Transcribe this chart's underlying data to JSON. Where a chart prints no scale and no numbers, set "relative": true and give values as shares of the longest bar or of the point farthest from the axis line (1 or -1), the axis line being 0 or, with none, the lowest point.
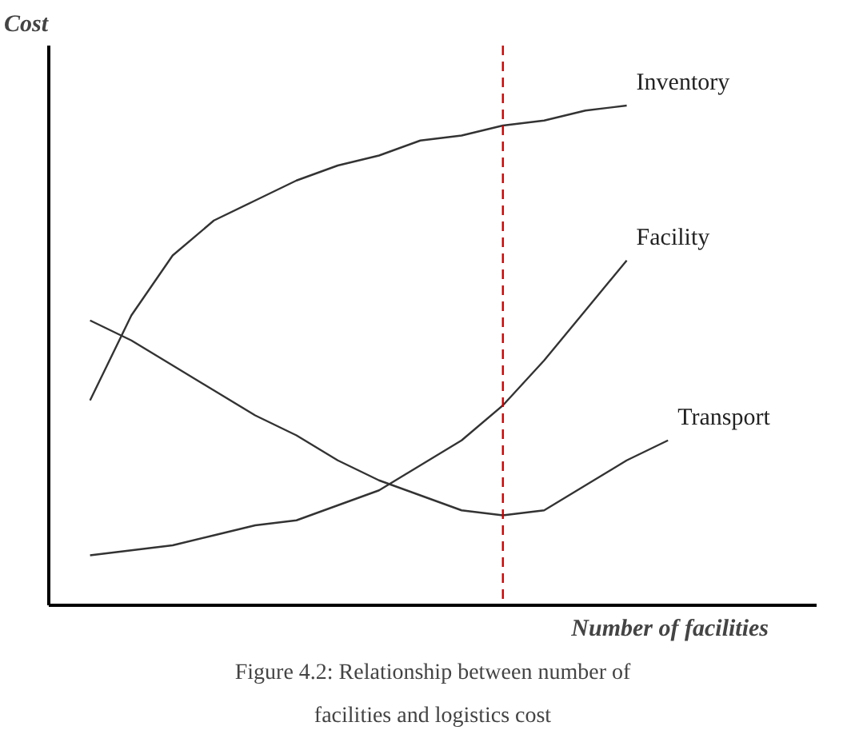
{
  "chart_data": {
    "type": "line",
    "relative": true,
    "xlabel": "Number of facilities",
    "ylabel": "Cost",
    "categories": [
      null,
      null,
      null,
      null,
      null,
      null,
      null,
      null,
      null,
      null,
      null,
      null,
      null,
      null,
      null
    ],
    "series": [
      {
        "name": "Inventory",
        "color": "#333333",
        "values": [
          0.41,
          0.58,
          0.7,
          0.77,
          0.81,
          0.85,
          0.88,
          0.9,
          0.93,
          0.94,
          0.96,
          0.97,
          0.99,
          1.0,
          null
        ]
      },
      {
        "name": "Facility",
        "color": "#333333",
        "values": [
          0.1,
          0.11,
          0.12,
          0.14,
          0.16,
          0.17,
          0.2,
          0.23,
          0.28,
          0.33,
          0.4,
          0.49,
          0.59,
          0.69,
          null
        ]
      },
      {
        "name": "Transport",
        "color": "#333333",
        "values": [
          0.57,
          0.53,
          0.48,
          0.43,
          0.38,
          0.34,
          0.29,
          0.25,
          0.22,
          0.19,
          0.18,
          0.19,
          0.24,
          0.29,
          0.33
        ]
      }
    ],
    "annotations": [
      "Figure 4.2: Relationship between number of facilities and logistics cost"
    ],
    "marker": "none",
    "line_style": "solid"
  }
}
